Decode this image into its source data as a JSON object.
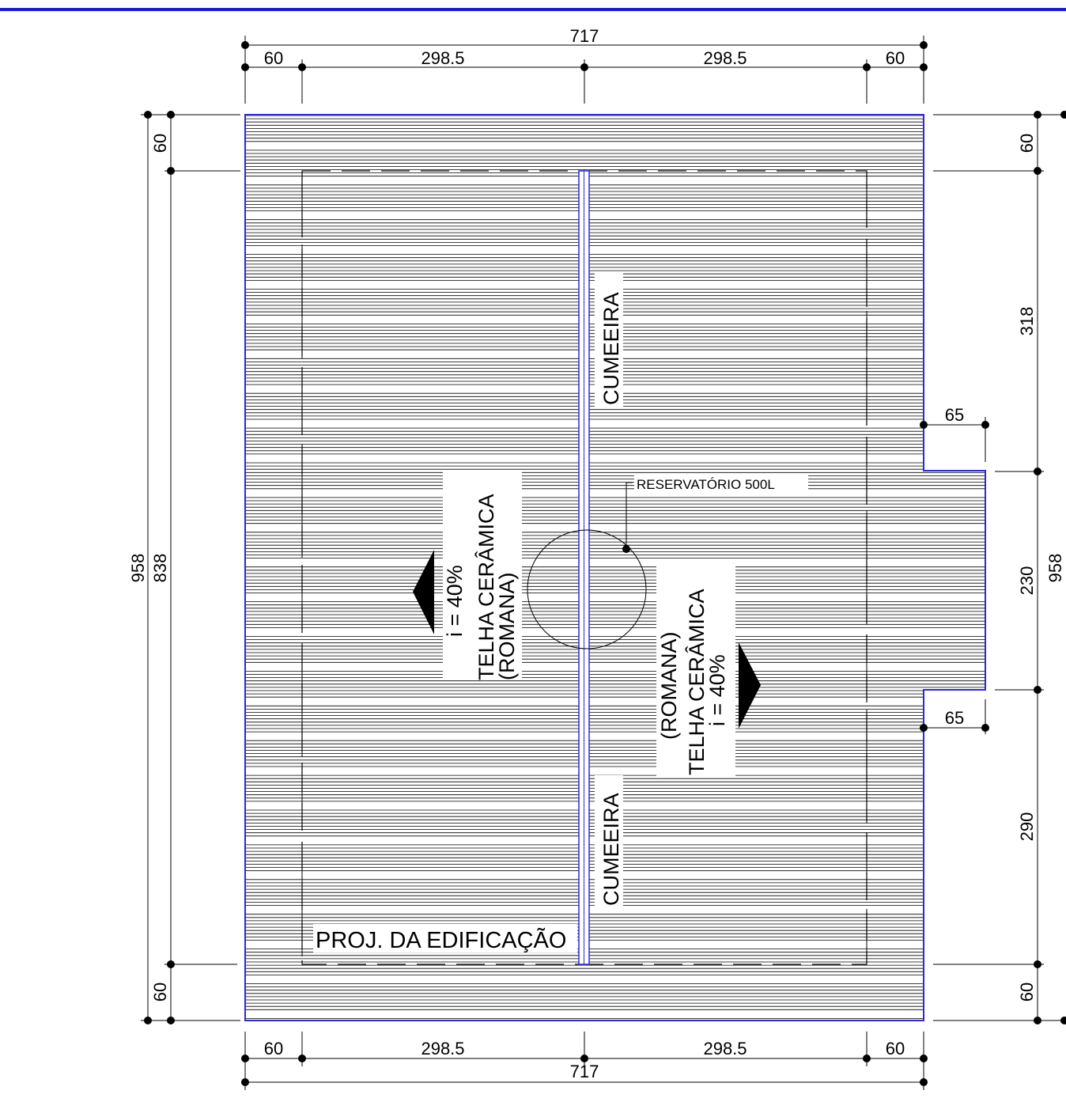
{
  "colors": {
    "header_rule": "#1a1adb",
    "roof_outline": "#2a2ad8",
    "hatch": "#000000",
    "dimension": "#000000"
  },
  "dimensions": {
    "top_total": "717",
    "top_left_eave": "60",
    "top_left_span": "298.5",
    "top_right_span": "298.5",
    "top_right_eave": "60",
    "bottom_total": "717",
    "bottom_left_eave": "60",
    "bottom_left_span": "298.5",
    "bottom_right_span": "298.5",
    "bottom_right_eave": "60",
    "left_total": "958",
    "left_inner": "838",
    "left_top_eave": "60",
    "left_bottom_eave": "60",
    "right_total": "958",
    "right_top_eave": "60",
    "right_seg1": "318",
    "right_seg2": "230",
    "right_seg3": "290",
    "right_bottom_eave": "60",
    "bump_top": "65",
    "bump_bottom": "65"
  },
  "labels": {
    "ridge_top": "CUMEEIRA",
    "ridge_bottom": "CUMEEIRA",
    "tank": "RESERVATÓRIO 500L",
    "building_projection": "PROJ. DA EDIFICAÇÃO",
    "left_tile": "TELHA CERÂMICA",
    "left_tile_type": "(ROMANA)",
    "left_slope": "i = 40%",
    "right_tile": "TELHA CERÂMICA",
    "right_tile_type": "(ROMANA)",
    "right_slope": "i = 40%"
  }
}
